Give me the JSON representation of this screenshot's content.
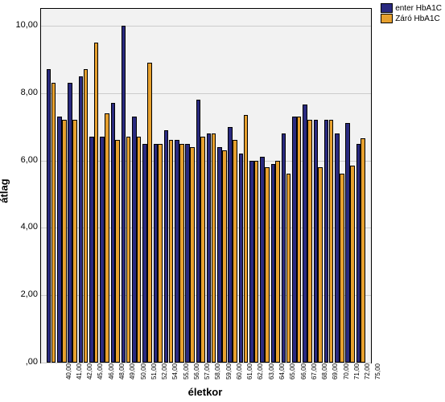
{
  "chart": {
    "type": "bar",
    "background_color": "#f2f2f2",
    "grid_color": "#cccccc",
    "border_color": "#000000",
    "ylabel": "átlag",
    "xlabel": "életkor",
    "ylim": [
      0,
      10.5
    ],
    "yticks": [
      0,
      2,
      4,
      6,
      8,
      10
    ],
    "ytick_labels": [
      ",00",
      "2,00",
      "4,00",
      "6,00",
      "8,00",
      "10,00"
    ],
    "categories": [
      "40,00",
      "41,00",
      "42,00",
      "45,00",
      "46,00",
      "48,00",
      "49,00",
      "50,00",
      "51,00",
      "52,00",
      "54,00",
      "55,00",
      "56,00",
      "57,00",
      "58,00",
      "59,00",
      "60,00",
      "61,00",
      "62,00",
      "63,00",
      "64,00",
      "65,00",
      "66,00",
      "67,00",
      "68,00",
      "69,00",
      "70,00",
      "71,00",
      "72,00",
      "75,00"
    ],
    "series": [
      {
        "name": "enter HbA1C",
        "color": "#2a2a80",
        "values": [
          8.7,
          7.3,
          8.3,
          8.5,
          6.7,
          6.7,
          7.7,
          10.0,
          7.3,
          6.5,
          6.5,
          6.9,
          6.6,
          6.5,
          7.8,
          6.8,
          6.4,
          7.0,
          6.2,
          6.0,
          6.1,
          5.9,
          6.8,
          7.3,
          7.65,
          7.2,
          7.2,
          6.8,
          7.1,
          6.5
        ]
      },
      {
        "name": "Záró HbA1C",
        "color": "#e6a02e",
        "values": [
          8.3,
          7.2,
          7.2,
          8.7,
          9.5,
          7.4,
          6.6,
          6.7,
          6.7,
          8.9,
          6.5,
          6.6,
          6.5,
          6.4,
          6.7,
          6.8,
          6.3,
          6.6,
          7.35,
          6.0,
          5.8,
          6.0,
          5.6,
          7.3,
          7.2,
          5.8,
          7.2,
          5.6,
          5.85,
          6.65
        ]
      }
    ],
    "legend_position": "top-right",
    "font_family": "Arial",
    "tick_fontsize": 8,
    "label_fontsize": 13
  }
}
